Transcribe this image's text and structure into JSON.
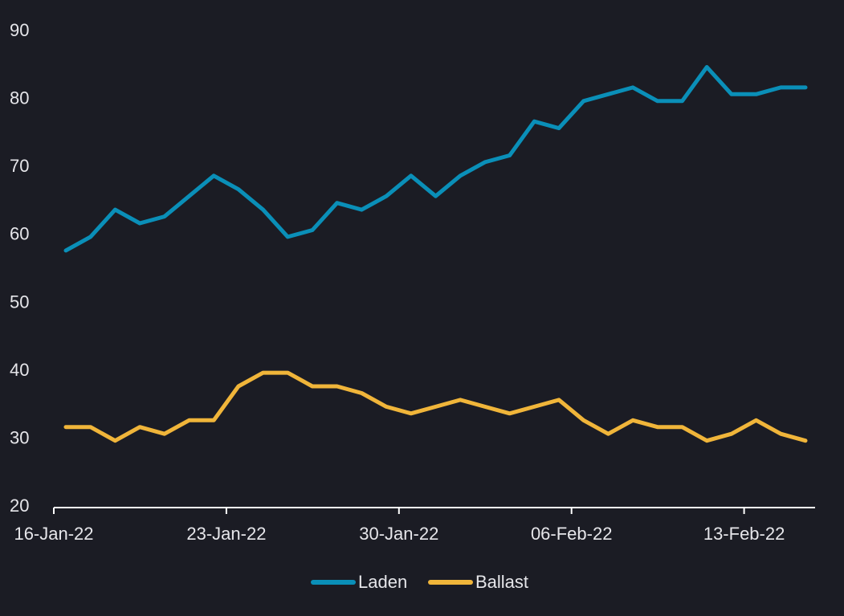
{
  "chart_data": {
    "type": "line",
    "x": [
      "16-Jan-22",
      "17-Jan-22",
      "18-Jan-22",
      "19-Jan-22",
      "20-Jan-22",
      "21-Jan-22",
      "22-Jan-22",
      "23-Jan-22",
      "24-Jan-22",
      "25-Jan-22",
      "26-Jan-22",
      "27-Jan-22",
      "28-Jan-22",
      "29-Jan-22",
      "30-Jan-22",
      "31-Jan-22",
      "01-Feb-22",
      "02-Feb-22",
      "03-Feb-22",
      "04-Feb-22",
      "05-Feb-22",
      "06-Feb-22",
      "07-Feb-22",
      "08-Feb-22",
      "09-Feb-22",
      "10-Feb-22",
      "11-Feb-22",
      "12-Feb-22",
      "13-Feb-22",
      "14-Feb-22",
      "15-Feb-22"
    ],
    "x_ticks": [
      "16-Jan-22",
      "23-Jan-22",
      "30-Jan-22",
      "06-Feb-22",
      "13-Feb-22"
    ],
    "y_ticks": [
      20,
      30,
      40,
      50,
      60,
      70,
      80,
      90
    ],
    "ylim": [
      20,
      90
    ],
    "grid": false,
    "legend_position": "bottom-center",
    "series": [
      {
        "name": "Laden",
        "color": "#0a8fb8",
        "values": [
          57.5,
          59.5,
          63.5,
          61.5,
          62.5,
          65.5,
          68.5,
          66.5,
          63.5,
          59.5,
          60.5,
          64.5,
          63.5,
          65.5,
          68.5,
          65.5,
          68.5,
          70.5,
          71.5,
          76.5,
          75.5,
          79.5,
          80.5,
          81.5,
          79.5,
          79.5,
          84.5,
          80.5,
          80.5,
          81.5,
          81.5
        ]
      },
      {
        "name": "Ballast",
        "color": "#f0b53a",
        "values": [
          31.5,
          31.5,
          29.5,
          31.5,
          30.5,
          32.5,
          32.5,
          37.5,
          39.5,
          39.5,
          37.5,
          37.5,
          36.5,
          34.5,
          33.5,
          34.5,
          35.5,
          34.5,
          33.5,
          34.5,
          35.5,
          32.5,
          30.5,
          32.5,
          31.5,
          31.5,
          29.5,
          30.5,
          32.5,
          30.5,
          29.5
        ]
      }
    ],
    "axis_color": "#ffffff",
    "text_color": "#e6e6ea"
  }
}
